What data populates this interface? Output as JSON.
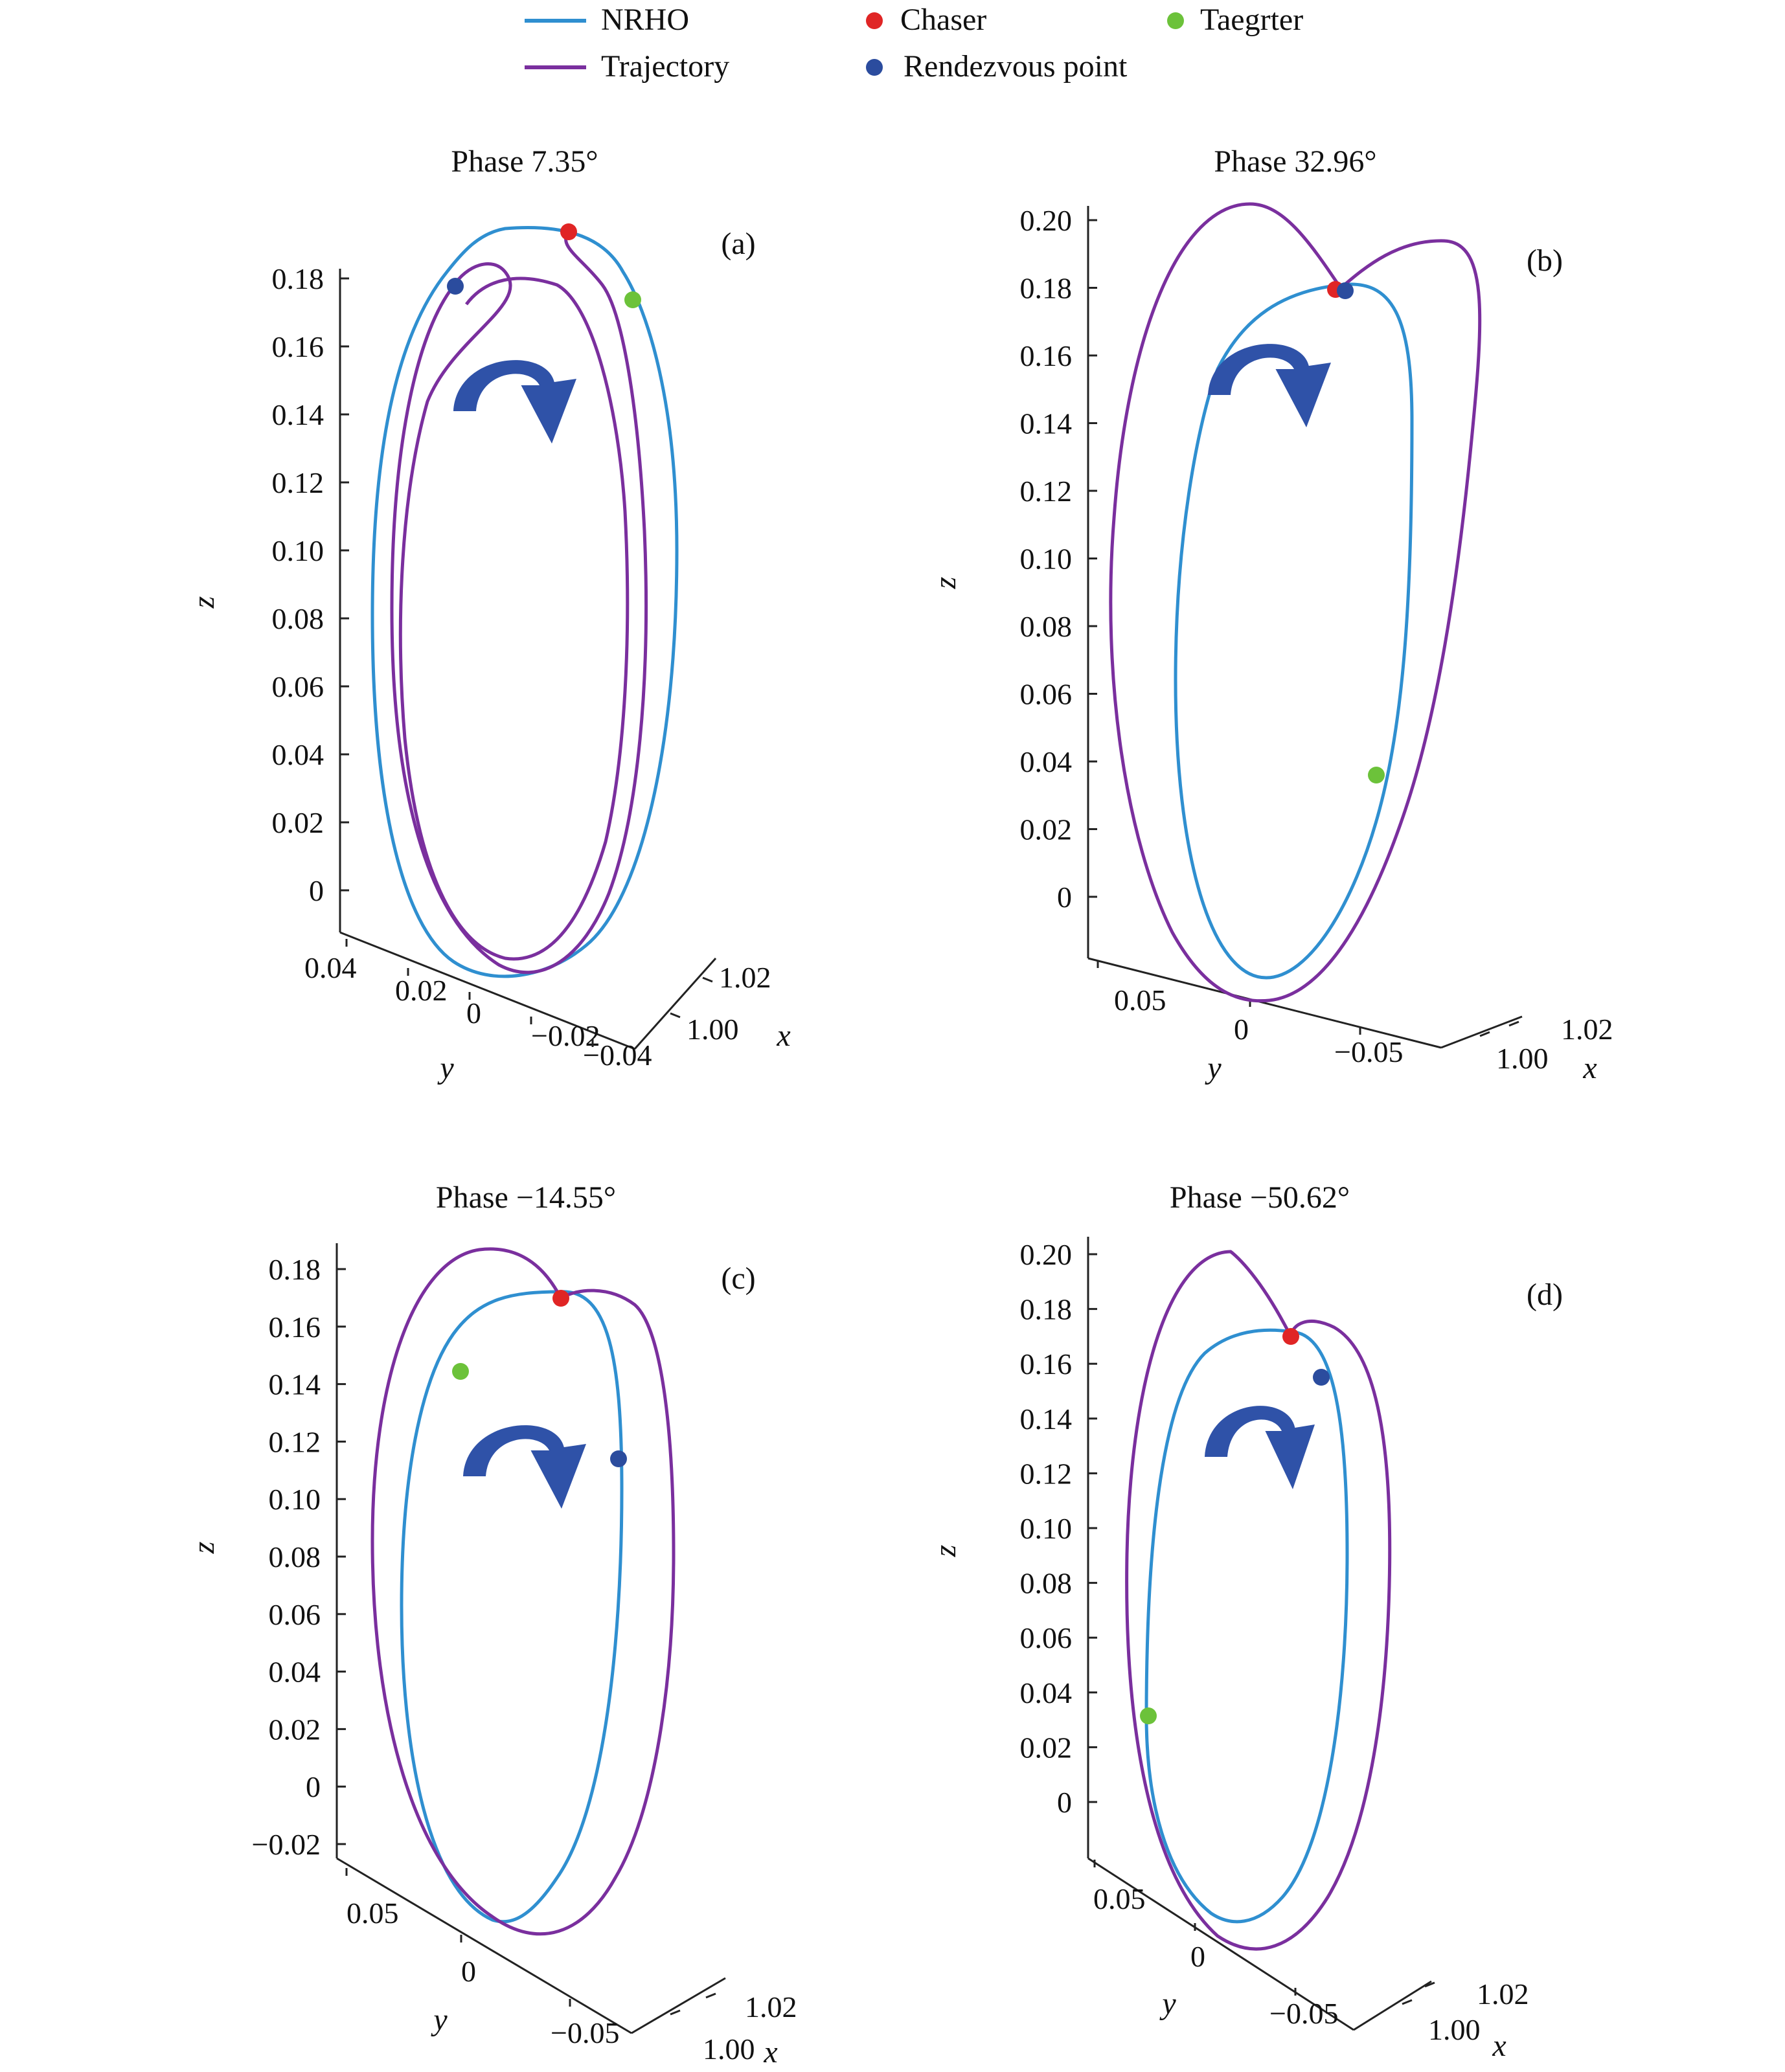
{
  "colors": {
    "nrho": "#2f8fd0",
    "trajectory": "#7a2f9e",
    "chaser": "#e02525",
    "target": "#6cc23a",
    "rendezvous": "#2b4c9e",
    "arrow": "#2f52a8"
  },
  "legend": {
    "nrho": "NRHO",
    "trajectory": "Trajectory",
    "chaser": "Chaser",
    "target": "Taegrter",
    "rendezvous": "Rendezvous point"
  },
  "chart_data": [
    {
      "type": "line",
      "panel_label": "(a)",
      "title": "Phase 7.35°",
      "zlabel": "z",
      "ylabel": "y",
      "xlabel": "x",
      "zlim": [
        0,
        0.18
      ],
      "z_ticks": [
        "0.18",
        "0.16",
        "0.14",
        "0.12",
        "0.10",
        "0.08",
        "0.06",
        "0.04",
        "0.02",
        "0"
      ],
      "y_ticks": [
        "0.04",
        "0.02",
        "0",
        "−0.02",
        "−0.04"
      ],
      "x_ticks": [
        "1.02",
        "1.00"
      ],
      "series": [
        {
          "name": "NRHO",
          "z_top": 0.175,
          "z_bottom": -0.025
        },
        {
          "name": "Trajectory",
          "z_top": 0.18,
          "z_bottom": -0.02
        }
      ],
      "points": [
        {
          "name": "Chaser",
          "z": 0.175
        },
        {
          "name": "Taegrter",
          "z": 0.173
        },
        {
          "name": "Rendezvous point",
          "z": 0.178
        }
      ]
    },
    {
      "type": "line",
      "panel_label": "(b)",
      "title": "Phase 32.96°",
      "zlabel": "z",
      "ylabel": "y",
      "xlabel": "x",
      "zlim": [
        0,
        0.2
      ],
      "z_ticks": [
        "0.20",
        "0.18",
        "0.16",
        "0.14",
        "0.12",
        "0.10",
        "0.08",
        "0.06",
        "0.04",
        "0.02",
        "0"
      ],
      "y_ticks": [
        "0.05",
        "0",
        "−0.05"
      ],
      "x_ticks": [
        "1.02",
        "1.00"
      ],
      "series": [
        {
          "name": "NRHO",
          "z_top": 0.18,
          "z_bottom": -0.02
        },
        {
          "name": "Trajectory",
          "z_top": 0.205,
          "z_bottom": -0.03
        }
      ],
      "points": [
        {
          "name": "Chaser",
          "z": 0.18
        },
        {
          "name": "Taegrter",
          "z": 0.036
        },
        {
          "name": "Rendezvous point",
          "z": 0.18
        }
      ]
    },
    {
      "type": "line",
      "panel_label": "(c)",
      "title": "Phase −14.55°",
      "zlabel": "z",
      "ylabel": "y",
      "xlabel": "x",
      "zlim": [
        -0.02,
        0.18
      ],
      "z_ticks": [
        "0.18",
        "0.16",
        "0.14",
        "0.12",
        "0.10",
        "0.08",
        "0.06",
        "0.04",
        "0.02",
        "0",
        "−0.02"
      ],
      "y_ticks": [
        "0.05",
        "0",
        "−0.05"
      ],
      "x_ticks": [
        "1.02",
        "1.00"
      ],
      "series": [
        {
          "name": "NRHO",
          "z_top": 0.174,
          "z_bottom": -0.065
        },
        {
          "name": "Trajectory",
          "z_top": 0.187,
          "z_bottom": -0.075
        }
      ],
      "points": [
        {
          "name": "Chaser",
          "z": 0.171
        },
        {
          "name": "Taegrter",
          "z": 0.146
        },
        {
          "name": "Rendezvous point",
          "z": 0.115
        }
      ]
    },
    {
      "type": "line",
      "panel_label": "(d)",
      "title": "Phase −50.62°",
      "zlabel": "z",
      "ylabel": "y",
      "xlabel": "x",
      "zlim": [
        0,
        0.2
      ],
      "z_ticks": [
        "0.20",
        "0.18",
        "0.16",
        "0.14",
        "0.12",
        "0.10",
        "0.08",
        "0.06",
        "0.04",
        "0.02",
        "0"
      ],
      "y_ticks": [
        "0.05",
        "0",
        "−0.05"
      ],
      "x_ticks": [
        "1.02",
        "1.00"
      ],
      "series": [
        {
          "name": "NRHO",
          "z_top": 0.173,
          "z_bottom": -0.04
        },
        {
          "name": "Trajectory",
          "z_top": 0.2,
          "z_bottom": -0.05
        }
      ],
      "points": [
        {
          "name": "Chaser",
          "z": 0.171
        },
        {
          "name": "Taegrter",
          "z": 0.032
        },
        {
          "name": "Rendezvous point",
          "z": 0.157
        }
      ]
    }
  ]
}
